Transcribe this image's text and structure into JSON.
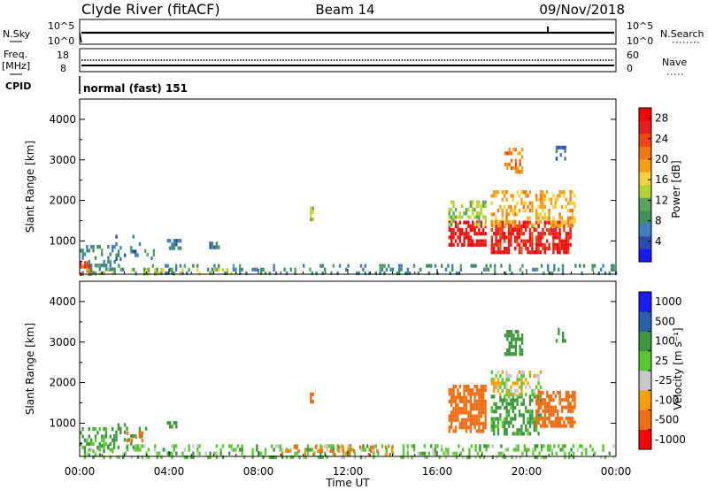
{
  "header": {
    "station": "Clyde River (fitACF)",
    "beam": "Beam 14",
    "date": "09/Nov/2018"
  },
  "status_panels": {
    "nsky_label": "N.Sky",
    "nsearch_label": "N.Search",
    "freq_label_line1": "Freq.",
    "freq_label_line2": "[MHz]",
    "nave_label": "Nave",
    "cpid_label": "CPID",
    "cpid_text": "normal (fast) 151",
    "noise_ticks": [
      "10^5",
      "10^0"
    ],
    "freq_ticks": [
      "18",
      "8"
    ],
    "nave_ticks": [
      "60",
      "0"
    ]
  },
  "x_axis": {
    "label": "Time UT",
    "ticks": [
      "00:00",
      "04:00",
      "08:00",
      "12:00",
      "16:00",
      "20:00",
      "00:00"
    ]
  },
  "colors": {
    "power_scale": [
      "#1a1aff",
      "#2a4faa",
      "#3e7fbf",
      "#3f8f5f",
      "#5aa55a",
      "#b4d234",
      "#f0d23c",
      "#f5a014",
      "#f07814",
      "#f04614",
      "#e61e1e",
      "#ff0000"
    ],
    "velocity_scale": [
      "#ff0000",
      "#ef6e14",
      "#f5a00a",
      "#c8c8c8",
      "#5ac832",
      "#3c963c",
      "#2a5faa",
      "#1a1aff"
    ]
  },
  "chart_data": [
    {
      "type": "heatmap",
      "name": "power",
      "xlabel": "Time UT",
      "ylabel": "Slant Range [km]",
      "xlim_hours": [
        0,
        24
      ],
      "ylim_km": [
        180,
        4500
      ],
      "yticks": [
        1000,
        2000,
        3000,
        4000
      ],
      "colorbar": {
        "label": "Power [dB]",
        "ticks": [
          4,
          8,
          12,
          16,
          20,
          24,
          28
        ],
        "range": [
          0,
          30
        ]
      },
      "regions": [
        {
          "t0": 0.0,
          "t1": 1.6,
          "r0": 200,
          "r1": 900,
          "value": 8,
          "density": 0.35
        },
        {
          "t0": 0.0,
          "t1": 0.5,
          "r0": 200,
          "r1": 500,
          "value": 24,
          "density": 0.55
        },
        {
          "t0": 0.0,
          "t1": 24.0,
          "r0": 200,
          "r1": 430,
          "value": 8,
          "density": 0.25
        },
        {
          "t0": 0.0,
          "t1": 7.0,
          "r0": 200,
          "r1": 330,
          "value": 14,
          "density": 0.18
        },
        {
          "t0": 1.6,
          "t1": 2.8,
          "r0": 520,
          "r1": 1150,
          "value": 6,
          "density": 0.22
        },
        {
          "t0": 2.8,
          "t1": 3.3,
          "r0": 550,
          "r1": 800,
          "value": 10,
          "density": 0.3
        },
        {
          "t0": 3.9,
          "t1": 4.5,
          "r0": 860,
          "r1": 1050,
          "value": 6,
          "density": 0.45
        },
        {
          "t0": 5.8,
          "t1": 6.2,
          "r0": 880,
          "r1": 980,
          "value": 6,
          "density": 0.5
        },
        {
          "t0": 10.3,
          "t1": 10.45,
          "r0": 1500,
          "r1": 1850,
          "value": 14,
          "density": 0.6
        },
        {
          "t0": 16.5,
          "t1": 18.2,
          "r0": 900,
          "r1": 1500,
          "value": 28,
          "density": 0.7
        },
        {
          "t0": 16.5,
          "t1": 18.2,
          "r0": 1450,
          "r1": 2000,
          "value": 13,
          "density": 0.5
        },
        {
          "t0": 18.4,
          "t1": 22.0,
          "r0": 700,
          "r1": 1500,
          "value": 26,
          "density": 0.7
        },
        {
          "t0": 18.4,
          "t1": 22.2,
          "r0": 1400,
          "r1": 2250,
          "value": 18,
          "density": 0.45
        },
        {
          "t0": 19.0,
          "t1": 19.8,
          "r0": 2700,
          "r1": 3300,
          "value": 20,
          "density": 0.45
        },
        {
          "t0": 21.3,
          "t1": 21.7,
          "r0": 3000,
          "r1": 3350,
          "value": 6,
          "density": 0.4
        }
      ]
    },
    {
      "type": "heatmap",
      "name": "velocity",
      "xlabel": "Time UT",
      "ylabel": "Slant Range [km]",
      "xlim_hours": [
        0,
        24
      ],
      "ylim_km": [
        180,
        4500
      ],
      "yticks": [
        1000,
        2000,
        3000,
        4000
      ],
      "colorbar": {
        "label": "Velocity [m s⁻¹]",
        "ticks": [
          -1000,
          -500,
          -100,
          -25,
          25,
          100,
          500,
          1000
        ]
      },
      "regions": [
        {
          "t0": 0.0,
          "t1": 24.0,
          "r0": 200,
          "r1": 480,
          "value": 60,
          "density": 0.3
        },
        {
          "t0": 0.0,
          "t1": 1.5,
          "r0": 200,
          "r1": 900,
          "value": 120,
          "density": 0.4
        },
        {
          "t0": 1.5,
          "t1": 3.0,
          "r0": 450,
          "r1": 1000,
          "value": 150,
          "density": 0.25
        },
        {
          "t0": 2.0,
          "t1": 3.0,
          "r0": 550,
          "r1": 800,
          "value": -200,
          "density": 0.3
        },
        {
          "t0": 3.9,
          "t1": 4.5,
          "r0": 880,
          "r1": 1050,
          "value": 200,
          "density": 0.45
        },
        {
          "t0": 9.0,
          "t1": 14.0,
          "r0": 200,
          "r1": 450,
          "value": -120,
          "density": 0.22
        },
        {
          "t0": 10.3,
          "t1": 10.45,
          "r0": 1500,
          "r1": 1850,
          "value": -150,
          "density": 0.55
        },
        {
          "t0": 16.5,
          "t1": 18.2,
          "r0": 850,
          "r1": 1950,
          "value": -200,
          "density": 0.7
        },
        {
          "t0": 18.4,
          "t1": 20.6,
          "r0": 700,
          "r1": 1700,
          "value": 130,
          "density": 0.55
        },
        {
          "t0": 18.4,
          "t1": 20.6,
          "r0": 1700,
          "r1": 2300,
          "value": 0,
          "density": 0.45
        },
        {
          "t0": 20.4,
          "t1": 22.2,
          "r0": 900,
          "r1": 1800,
          "value": -200,
          "density": 0.65
        },
        {
          "t0": 19.0,
          "t1": 19.8,
          "r0": 2700,
          "r1": 3300,
          "value": 200,
          "density": 0.45
        },
        {
          "t0": 21.3,
          "t1": 21.7,
          "r0": 3000,
          "r1": 3350,
          "value": 300,
          "density": 0.4
        }
      ]
    }
  ]
}
